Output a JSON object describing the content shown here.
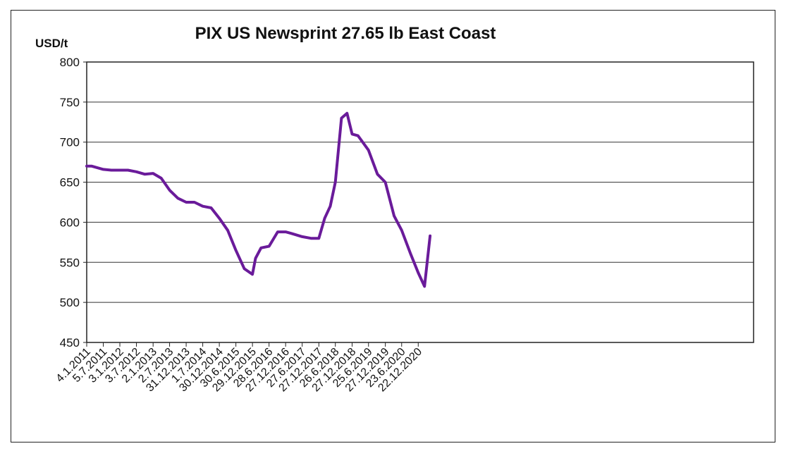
{
  "chart_data": {
    "type": "line",
    "title": "PIX US Newsprint 27.65 lb East Coast",
    "ylabel": "USD/t",
    "xlabel": "",
    "ylim": [
      450,
      800
    ],
    "yticks": [
      "800",
      "750",
      "700",
      "650",
      "600",
      "550",
      "500",
      "450"
    ],
    "x_tick_labels": [
      "4.1.2011",
      "5.7.2011",
      "3.1.2012",
      "3.7.2012",
      "2.1.2013",
      "2.7.2013",
      "31.12.2013",
      "1.7.2014",
      "30.12.2014",
      "30.6.2015",
      "29.12.2015",
      "28.6.2016",
      "27.12.2016",
      "27.6.2017",
      "27.12.2017",
      "26.6.2018",
      "27.12.2018",
      "25.6.2019",
      "27.12.2019",
      "23.6.2020",
      "22.12.2020"
    ],
    "grid": "horizontal",
    "line_color": "#6a1b9a",
    "series": [
      {
        "x": [
          "4.1.2011",
          "1.3.2011",
          "5.7.2011",
          "1.10.2011",
          "3.1.2012",
          "1.4.2012",
          "3.7.2012",
          "1.10.2012",
          "2.1.2013",
          "1.4.2013",
          "2.7.2013",
          "1.10.2013",
          "31.12.2013",
          "1.4.2014",
          "1.7.2014",
          "1.10.2014",
          "30.12.2014",
          "1.4.2015",
          "30.6.2015",
          "1.10.2015",
          "29.12.2015",
          "1.2.2016",
          "1.4.2016",
          "28.6.2016",
          "1.10.2016",
          "27.12.2016",
          "1.3.2017",
          "27.6.2017",
          "1.10.2017",
          "27.12.2017",
          "1.3.2018",
          "1.5.2018",
          "26.6.2018",
          "1.9.2018",
          "1.11.2018",
          "27.12.2018",
          "1.3.2019",
          "25.6.2019",
          "1.10.2019",
          "27.12.2019",
          "1.4.2020",
          "23.6.2020",
          "1.10.2020",
          "22.12.2020",
          "1.3.2021",
          "1.5.2021"
        ],
        "values": [
          670,
          670,
          666,
          665,
          665,
          665,
          663,
          660,
          661,
          655,
          640,
          630,
          625,
          625,
          620,
          618,
          605,
          590,
          565,
          542,
          535,
          555,
          568,
          570,
          588,
          588,
          586,
          582,
          580,
          580,
          605,
          620,
          650,
          730,
          736,
          710,
          708,
          690,
          660,
          650,
          608,
          590,
          560,
          537,
          520,
          583
        ]
      }
    ]
  }
}
